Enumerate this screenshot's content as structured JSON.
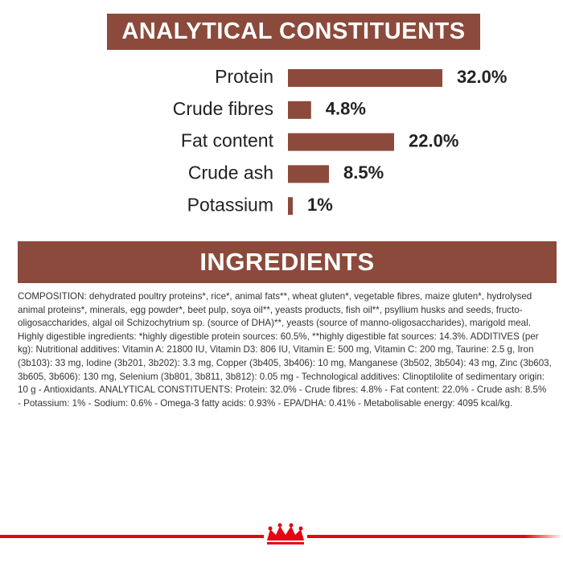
{
  "chart_data": {
    "type": "bar",
    "orientation": "horizontal",
    "title": "ANALYTICAL CONSTITUENTS",
    "categories": [
      "Protein",
      "Crude fibres",
      "Fat content",
      "Crude ash",
      "Potassium"
    ],
    "values": [
      32.0,
      4.8,
      22.0,
      8.5,
      1
    ],
    "value_labels": [
      "32.0%",
      "4.8%",
      "22.0%",
      "8.5%",
      "1%"
    ],
    "color": "#8b4a3b"
  },
  "ingredients": {
    "title": "INGREDIENTS",
    "text": "COMPOSITION: dehydrated poultry proteins*, rice*, animal fats**, wheat gluten*, vegetable fibres, maize gluten*, hydrolysed animal proteins*, minerals, egg powder*, beet pulp, soya oil**, yeasts products, fish oil**, psyllium husks and seeds, fructo-oligosaccharides, algal oil Schizochytrium sp. (source of DHA)**, yeasts (source of manno-oligosaccharides), marigold meal. Highly digestible ingredients: *highly digestible protein sources: 60.5%, **highly digestible fat sources: 14.3%. ADDITIVES (per kg): Nutritional additives: Vitamin A: 21800 IU, Vitamin D3: 806 IU, Vitamin E: 500 mg, Vitamin C: 200 mg, Taurine: 2.5 g, Iron (3b103): 33 mg, Iodine (3b201, 3b202): 3.3 mg, Copper (3b405, 3b406): 10 mg, Manganese (3b502, 3b504): 43 mg, Zinc (3b603, 3b605, 3b606): 130 mg, Selenium (3b801, 3b811, 3b812): 0.05 mg - Technological additives: Clinoptilolite of sedimentary origin: 10 g - Antioxidants. ANALYTICAL CONSTITUENTS: Protein: 32.0% - Crude fibres: 4.8% - Fat content: 22.0% - Crude ash: 8.5% - Potassium: 1% - Sodium: 0.6% - Omega-3 fatty acids: 0.93% - EPA/DHA: 0.41% - Metabolisable energy: 4095 kcal/kg."
  }
}
